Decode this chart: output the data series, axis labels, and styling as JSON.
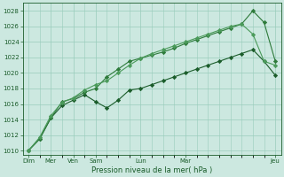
{
  "background_color": "#cce8e0",
  "grid_color": "#99ccbb",
  "line_color_dark": "#1a5c2a",
  "line_color_mid": "#2d7a3a",
  "line_color_light": "#4a9a5a",
  "xlabel": "Pression niveau de la mer( hPa )",
  "ylim": [
    1009.5,
    1029.0
  ],
  "yticks": [
    1010,
    1012,
    1014,
    1016,
    1018,
    1020,
    1022,
    1024,
    1026,
    1028
  ],
  "xtick_labels": [
    "Dim",
    "Mer",
    "Ven",
    "Sam",
    "Lun",
    "Mar",
    "Jeu"
  ],
  "xtick_positions": [
    0,
    2,
    4,
    6,
    10,
    14,
    22
  ],
  "series1_x": [
    0,
    1,
    2,
    3,
    4,
    5,
    6,
    7,
    8,
    9,
    10,
    11,
    12,
    13,
    14,
    15,
    16,
    17,
    18,
    19,
    20,
    21,
    22
  ],
  "series1_y": [
    1010.0,
    1011.5,
    1014.2,
    1015.8,
    1016.5,
    1017.2,
    1016.3,
    1015.5,
    1016.5,
    1017.8,
    1018.0,
    1018.5,
    1019.0,
    1019.5,
    1020.0,
    1020.5,
    1021.0,
    1021.5,
    1022.0,
    1022.5,
    1023.0,
    1021.5,
    1019.7
  ],
  "series2_x": [
    0,
    1,
    2,
    3,
    4,
    5,
    6,
    7,
    8,
    9,
    10,
    11,
    12,
    13,
    14,
    15,
    16,
    17,
    18,
    19,
    20,
    21,
    22
  ],
  "series2_y": [
    1010.0,
    1011.5,
    1014.2,
    1016.3,
    1016.7,
    1017.5,
    1018.0,
    1019.5,
    1020.5,
    1021.5,
    1021.9,
    1022.3,
    1022.7,
    1023.2,
    1023.8,
    1024.3,
    1024.8,
    1025.3,
    1025.8,
    1026.3,
    1028.0,
    1026.5,
    1021.5
  ],
  "series3_x": [
    0,
    1,
    2,
    3,
    4,
    5,
    6,
    7,
    8,
    9,
    10,
    11,
    12,
    13,
    14,
    15,
    16,
    17,
    18,
    19,
    20,
    21,
    22
  ],
  "series3_y": [
    1010.0,
    1011.7,
    1014.5,
    1016.2,
    1016.8,
    1017.8,
    1018.5,
    1019.0,
    1020.0,
    1021.0,
    1021.9,
    1022.5,
    1023.0,
    1023.5,
    1024.0,
    1024.5,
    1025.0,
    1025.5,
    1026.0,
    1026.3,
    1025.0,
    1021.5,
    1021.0
  ],
  "xmin": 0,
  "xmax": 22
}
